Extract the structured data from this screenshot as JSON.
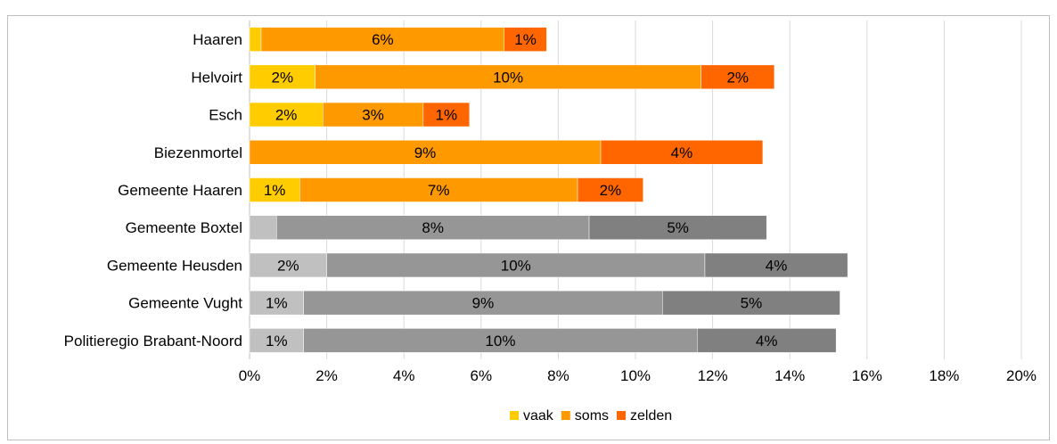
{
  "title": "",
  "chart_data": {
    "type": "bar",
    "orientation": "horizontal",
    "stacked": true,
    "categories": [
      "Haaren",
      "Helvoirt",
      "Esch",
      "Biezenmortel",
      "Gemeente Haaren",
      "Gemeente Boxtel",
      "Gemeente Heusden",
      "Gemeente Vught",
      "Politieregio Brabant-Noord"
    ],
    "series": [
      {
        "name": "vaak",
        "values": [
          0.3,
          1.7,
          1.9,
          0,
          1.3,
          0.7,
          2.0,
          1.4,
          1.4
        ],
        "labels": [
          "",
          "2%",
          "2%",
          "",
          "1%",
          "",
          "2%",
          "1%",
          "1%"
        ]
      },
      {
        "name": "soms",
        "values": [
          6.3,
          10.0,
          2.6,
          9.1,
          7.2,
          8.1,
          9.8,
          9.3,
          10.2
        ],
        "labels": [
          "6%",
          "10%",
          "3%",
          "9%",
          "7%",
          "8%",
          "10%",
          "9%",
          "10%"
        ]
      },
      {
        "name": "zelden",
        "values": [
          1.1,
          1.9,
          1.2,
          4.2,
          1.7,
          4.6,
          3.7,
          4.6,
          3.6
        ],
        "labels": [
          "1%",
          "2%",
          "1%",
          "4%",
          "2%",
          "5%",
          "4%",
          "5%",
          "4%"
        ]
      }
    ],
    "colors": {
      "highlight": [
        "#ffcc00",
        "#ff9900",
        "#ff6600"
      ],
      "comparison": [
        "#c0c0c0",
        "#969696",
        "#808080"
      ]
    },
    "highlight_categories": 5,
    "xlim": [
      0,
      20
    ],
    "xticks": [
      "0%",
      "2%",
      "4%",
      "6%",
      "8%",
      "10%",
      "12%",
      "14%",
      "16%",
      "18%",
      "20%"
    ],
    "grid": true,
    "legend_position": "bottom",
    "legend_colors": [
      "#ffcc00",
      "#ff9900",
      "#ff6600"
    ]
  }
}
